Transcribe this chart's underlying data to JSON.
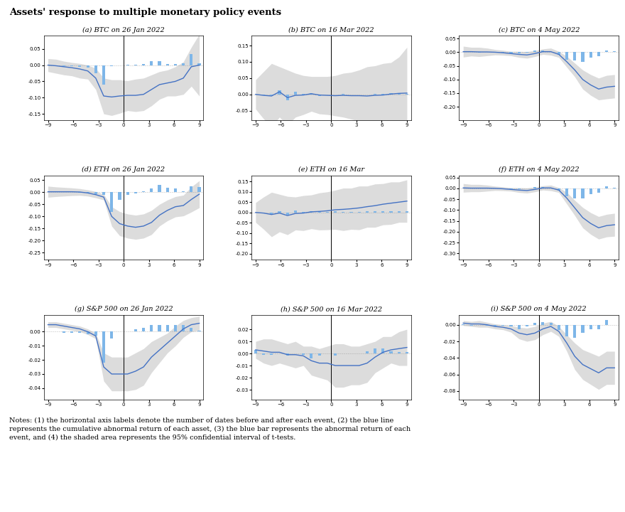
{
  "title": "Assets' response to multiple monetary policy events",
  "x_ticks": [
    -9,
    -6,
    -3,
    0,
    3,
    6,
    9
  ],
  "subtitles": [
    "(a) BTC on 26 Jan 2022",
    "(b) BTC on 16 Mar 2022",
    "(c) BTC on 4 May 2022",
    "(d) ETH on 26 Jan 2022",
    "(e) ETH on 16 Mar",
    "(f) ETH on 4 May 2022",
    "(g) S&P 500 on 26 Jan 2022",
    "(h) S&P 500 on 16 Mar 2022",
    "(i) S&P 500 on 4 May 2022"
  ],
  "notes": "Notes: (1) the horizontal axis labels denote the number of dates before and after each event, (2) the blue line\nrepresents the cumulative abnormal return of each asset, (3) the blue bar represents the abnormal return of each\nevent, and (4) the shaded area represents the 95% confidential interval of t-tests.",
  "line_color": "#4472C4",
  "bar_color": "#7EB6E8",
  "shade_color": "#C0C0C0",
  "bg_color": "#FFFFFF",
  "panels": [
    {
      "ylim": [
        -0.17,
        0.09
      ],
      "yticks": [
        -0.15,
        -0.1,
        -0.05,
        0.0,
        0.05
      ],
      "line": [
        0.0,
        -0.002,
        -0.005,
        -0.008,
        -0.012,
        -0.018,
        -0.04,
        -0.095,
        -0.098,
        -0.095,
        -0.093,
        -0.093,
        -0.09,
        -0.075,
        -0.06,
        -0.055,
        -0.05,
        -0.04,
        -0.005,
        0.0
      ],
      "upper": [
        0.02,
        0.018,
        0.012,
        0.008,
        0.005,
        0.0,
        -0.01,
        -0.04,
        -0.045,
        -0.045,
        -0.048,
        -0.043,
        -0.04,
        -0.03,
        -0.02,
        -0.015,
        -0.005,
        0.01,
        0.055,
        0.095
      ],
      "lower": [
        -0.02,
        -0.025,
        -0.03,
        -0.033,
        -0.04,
        -0.043,
        -0.075,
        -0.15,
        -0.155,
        -0.148,
        -0.14,
        -0.143,
        -0.14,
        -0.125,
        -0.105,
        -0.095,
        -0.095,
        -0.09,
        -0.065,
        -0.095
      ],
      "bars": [
        0.0,
        -0.002,
        -0.003,
        -0.004,
        -0.005,
        -0.008,
        -0.025,
        -0.06,
        -0.004,
        -0.001,
        0.002,
        0.002,
        0.004,
        0.012,
        0.013,
        0.004,
        0.004,
        0.006,
        0.033,
        0.005
      ]
    },
    {
      "ylim": [
        -0.08,
        0.18
      ],
      "yticks": [
        -0.05,
        0.0,
        0.05,
        0.1,
        0.15
      ],
      "line": [
        0.0,
        -0.003,
        -0.005,
        0.008,
        -0.01,
        -0.003,
        -0.002,
        0.002,
        -0.002,
        -0.003,
        -0.004,
        -0.003,
        -0.004,
        -0.004,
        -0.005,
        -0.003,
        -0.002,
        0.001,
        0.003,
        0.004
      ],
      "upper": [
        0.045,
        0.07,
        0.095,
        0.085,
        0.075,
        0.065,
        0.058,
        0.055,
        0.055,
        0.055,
        0.058,
        0.065,
        0.068,
        0.075,
        0.085,
        0.088,
        0.095,
        0.098,
        0.115,
        0.145
      ],
      "lower": [
        -0.045,
        -0.075,
        -0.1,
        -0.07,
        -0.095,
        -0.07,
        -0.062,
        -0.052,
        -0.06,
        -0.062,
        -0.066,
        -0.07,
        -0.076,
        -0.082,
        -0.095,
        -0.095,
        -0.098,
        -0.096,
        -0.108,
        -0.138
      ],
      "bars": [
        0.0,
        -0.003,
        -0.003,
        0.013,
        -0.018,
        0.008,
        0.001,
        0.004,
        -0.004,
        -0.001,
        -0.001,
        0.001,
        -0.001,
        -0.001,
        -0.001,
        0.001,
        0.001,
        0.003,
        0.002,
        0.001
      ]
    },
    {
      "ylim": [
        -0.25,
        0.06
      ],
      "yticks": [
        -0.2,
        -0.15,
        -0.1,
        -0.05,
        0.0,
        0.05
      ],
      "line": [
        0.002,
        0.002,
        0.001,
        0.001,
        0.0,
        -0.002,
        -0.005,
        -0.008,
        -0.01,
        -0.005,
        0.002,
        0.002,
        -0.008,
        -0.035,
        -0.065,
        -0.1,
        -0.12,
        -0.135,
        -0.128,
        -0.125
      ],
      "upper": [
        0.022,
        0.018,
        0.018,
        0.015,
        0.01,
        0.007,
        0.003,
        0.003,
        0.002,
        0.006,
        0.012,
        0.015,
        0.003,
        -0.015,
        -0.04,
        -0.065,
        -0.082,
        -0.095,
        -0.085,
        -0.082
      ],
      "lower": [
        -0.018,
        -0.014,
        -0.016,
        -0.013,
        -0.01,
        -0.011,
        -0.013,
        -0.019,
        -0.022,
        -0.016,
        -0.008,
        -0.011,
        -0.019,
        -0.055,
        -0.09,
        -0.135,
        -0.158,
        -0.175,
        -0.171,
        -0.168
      ],
      "bars": [
        0.0,
        0.0,
        -0.001,
        0.0,
        -0.001,
        -0.002,
        -0.003,
        -0.003,
        -0.002,
        0.005,
        0.007,
        0.0,
        -0.01,
        -0.027,
        -0.03,
        -0.035,
        -0.02,
        -0.015,
        0.007,
        0.003
      ]
    },
    {
      "ylim": [
        -0.28,
        0.07
      ],
      "yticks": [
        -0.25,
        -0.2,
        -0.15,
        -0.1,
        -0.05,
        0.0,
        0.05
      ],
      "line": [
        0.002,
        0.002,
        0.002,
        0.002,
        0.001,
        -0.003,
        -0.01,
        -0.02,
        -0.1,
        -0.13,
        -0.14,
        -0.145,
        -0.14,
        -0.125,
        -0.095,
        -0.075,
        -0.06,
        -0.055,
        -0.03,
        -0.008
      ],
      "upper": [
        0.025,
        0.022,
        0.02,
        0.018,
        0.015,
        0.01,
        0.003,
        -0.008,
        -0.06,
        -0.08,
        -0.09,
        -0.095,
        -0.09,
        -0.075,
        -0.05,
        -0.032,
        -0.018,
        -0.012,
        0.022,
        0.048
      ],
      "lower": [
        -0.021,
        -0.018,
        -0.016,
        -0.014,
        -0.013,
        -0.016,
        -0.023,
        -0.032,
        -0.14,
        -0.18,
        -0.19,
        -0.195,
        -0.19,
        -0.175,
        -0.14,
        -0.118,
        -0.102,
        -0.098,
        -0.082,
        -0.064
      ],
      "bars": [
        0.0,
        0.0,
        0.0,
        0.0,
        -0.001,
        -0.004,
        -0.007,
        -0.01,
        -0.08,
        -0.03,
        -0.01,
        -0.005,
        0.005,
        0.015,
        0.03,
        0.02,
        0.015,
        0.005,
        0.025,
        0.022
      ]
    },
    {
      "ylim": [
        -0.23,
        0.18
      ],
      "yticks": [
        -0.2,
        -0.15,
        -0.1,
        -0.05,
        0.0,
        0.05,
        0.1,
        0.15
      ],
      "line": [
        0.0,
        -0.003,
        -0.01,
        -0.003,
        -0.015,
        -0.005,
        -0.003,
        0.003,
        0.005,
        0.008,
        0.013,
        0.015,
        0.018,
        0.022,
        0.028,
        0.033,
        0.04,
        0.045,
        0.05,
        0.055
      ],
      "upper": [
        0.048,
        0.075,
        0.098,
        0.088,
        0.078,
        0.075,
        0.082,
        0.085,
        0.095,
        0.1,
        0.108,
        0.118,
        0.118,
        0.128,
        0.128,
        0.138,
        0.14,
        0.148,
        0.148,
        0.158
      ],
      "lower": [
        -0.048,
        -0.081,
        -0.118,
        -0.094,
        -0.108,
        -0.085,
        -0.088,
        -0.079,
        -0.085,
        -0.084,
        -0.082,
        -0.088,
        -0.082,
        -0.084,
        -0.072,
        -0.072,
        -0.06,
        -0.058,
        -0.048,
        -0.048
      ],
      "bars": [
        0.0,
        -0.003,
        -0.007,
        0.007,
        -0.012,
        0.01,
        0.002,
        0.006,
        0.002,
        0.003,
        0.005,
        0.002,
        0.003,
        0.004,
        0.006,
        0.005,
        0.007,
        0.005,
        0.005,
        0.005
      ]
    },
    {
      "ylim": [
        -0.33,
        0.06
      ],
      "yticks": [
        -0.3,
        -0.25,
        -0.2,
        -0.15,
        -0.1,
        -0.05,
        0.0,
        0.05
      ],
      "line": [
        0.002,
        0.001,
        0.001,
        0.001,
        0.0,
        -0.002,
        -0.005,
        -0.008,
        -0.01,
        -0.005,
        0.002,
        0.002,
        -0.008,
        -0.045,
        -0.09,
        -0.135,
        -0.162,
        -0.182,
        -0.172,
        -0.168
      ],
      "upper": [
        0.022,
        0.018,
        0.018,
        0.015,
        0.01,
        0.007,
        0.003,
        0.003,
        0.002,
        0.006,
        0.012,
        0.015,
        0.003,
        -0.018,
        -0.055,
        -0.088,
        -0.112,
        -0.13,
        -0.12,
        -0.115
      ],
      "lower": [
        -0.018,
        -0.016,
        -0.016,
        -0.013,
        -0.01,
        -0.011,
        -0.013,
        -0.019,
        -0.022,
        -0.016,
        -0.008,
        -0.011,
        -0.019,
        -0.072,
        -0.125,
        -0.182,
        -0.212,
        -0.234,
        -0.224,
        -0.221
      ],
      "bars": [
        0.0,
        -0.001,
        0.0,
        0.0,
        -0.001,
        -0.002,
        -0.003,
        -0.003,
        -0.002,
        0.005,
        0.007,
        0.0,
        -0.01,
        -0.037,
        -0.045,
        -0.045,
        -0.027,
        -0.02,
        0.01,
        0.004
      ]
    },
    {
      "ylim": [
        -0.048,
        0.012
      ],
      "yticks": [
        -0.04,
        -0.03,
        -0.02,
        -0.01,
        0.0
      ],
      "line": [
        0.005,
        0.005,
        0.004,
        0.003,
        0.002,
        0.0,
        -0.003,
        -0.025,
        -0.03,
        -0.03,
        -0.03,
        -0.028,
        -0.025,
        -0.018,
        -0.013,
        -0.008,
        -0.003,
        0.002,
        0.005,
        0.006
      ],
      "upper": [
        0.007,
        0.007,
        0.006,
        0.005,
        0.004,
        0.002,
        -0.001,
        -0.015,
        -0.018,
        -0.018,
        -0.018,
        -0.015,
        -0.012,
        -0.007,
        -0.004,
        -0.001,
        0.004,
        0.008,
        0.01,
        0.011
      ],
      "lower": [
        0.003,
        0.003,
        0.002,
        0.001,
        0.0,
        -0.002,
        -0.005,
        -0.035,
        -0.042,
        -0.042,
        -0.042,
        -0.041,
        -0.038,
        -0.029,
        -0.022,
        -0.015,
        -0.01,
        -0.004,
        0.0,
        0.001
      ],
      "bars": [
        0.0,
        0.0,
        -0.001,
        -0.001,
        -0.001,
        -0.002,
        -0.003,
        -0.022,
        -0.005,
        0.0,
        0.0,
        0.002,
        0.003,
        0.005,
        0.005,
        0.005,
        0.005,
        0.005,
        0.003,
        0.001
      ]
    },
    {
      "ylim": [
        -0.038,
        0.032
      ],
      "yticks": [
        -0.03,
        -0.02,
        -0.01,
        0.0,
        0.01,
        0.02
      ],
      "line": [
        0.003,
        0.002,
        0.001,
        0.001,
        -0.001,
        -0.001,
        -0.002,
        -0.006,
        -0.008,
        -0.008,
        -0.01,
        -0.01,
        -0.01,
        -0.01,
        -0.008,
        -0.003,
        0.001,
        0.003,
        0.004,
        0.005
      ],
      "upper": [
        0.01,
        0.012,
        0.012,
        0.01,
        0.008,
        0.01,
        0.006,
        0.006,
        0.004,
        0.006,
        0.008,
        0.008,
        0.006,
        0.006,
        0.008,
        0.01,
        0.014,
        0.014,
        0.018,
        0.02
      ],
      "lower": [
        -0.004,
        -0.008,
        -0.01,
        -0.008,
        -0.01,
        -0.012,
        -0.01,
        -0.018,
        -0.02,
        -0.022,
        -0.028,
        -0.028,
        -0.026,
        -0.026,
        -0.024,
        -0.016,
        -0.012,
        -0.008,
        -0.01,
        -0.01
      ],
      "bars": [
        0.003,
        -0.001,
        -0.001,
        0.0,
        -0.002,
        0.0,
        -0.001,
        -0.004,
        -0.002,
        0.0,
        -0.002,
        0.0,
        0.0,
        0.0,
        0.002,
        0.004,
        0.004,
        0.002,
        0.001,
        0.001
      ]
    },
    {
      "ylim": [
        -0.09,
        0.012
      ],
      "yticks": [
        -0.08,
        -0.06,
        -0.04,
        -0.02,
        0.0
      ],
      "line": [
        0.002,
        0.001,
        0.001,
        0.0,
        -0.002,
        -0.003,
        -0.005,
        -0.01,
        -0.012,
        -0.01,
        -0.005,
        -0.002,
        -0.008,
        -0.022,
        -0.038,
        -0.048,
        -0.053,
        -0.058,
        -0.052,
        -0.052
      ],
      "upper": [
        0.005,
        0.004,
        0.005,
        0.003,
        0.001,
        0.0,
        -0.001,
        -0.003,
        -0.004,
        -0.002,
        0.002,
        0.004,
        -0.002,
        -0.012,
        -0.022,
        -0.03,
        -0.034,
        -0.038,
        -0.032,
        -0.032
      ],
      "lower": [
        -0.001,
        -0.002,
        -0.003,
        -0.003,
        -0.005,
        -0.006,
        -0.009,
        -0.017,
        -0.02,
        -0.018,
        -0.012,
        -0.008,
        -0.014,
        -0.032,
        -0.054,
        -0.066,
        -0.072,
        -0.078,
        -0.072,
        -0.072
      ],
      "bars": [
        0.001,
        -0.001,
        0.0,
        -0.001,
        -0.002,
        -0.001,
        -0.002,
        -0.005,
        -0.002,
        0.002,
        0.003,
        0.002,
        -0.006,
        -0.014,
        -0.016,
        -0.01,
        -0.005,
        -0.005,
        0.006,
        0.0
      ]
    }
  ]
}
